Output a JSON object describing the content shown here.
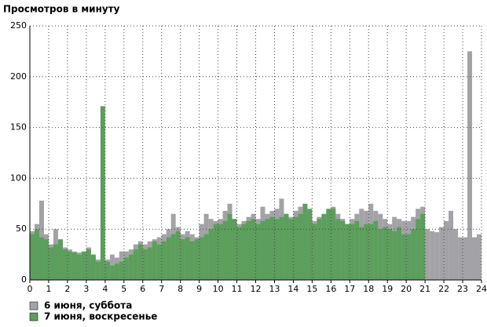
{
  "chart_data": {
    "type": "bar",
    "title": "Просмотров в минуту",
    "x": [
      0,
      0.25,
      0.5,
      0.75,
      1,
      1.25,
      1.5,
      1.75,
      2,
      2.25,
      2.5,
      2.75,
      3,
      3.25,
      3.5,
      3.75,
      4,
      4.25,
      4.5,
      4.75,
      5,
      5.25,
      5.5,
      5.75,
      6,
      6.25,
      6.5,
      6.75,
      7,
      7.25,
      7.5,
      7.75,
      8,
      8.25,
      8.5,
      8.75,
      9,
      9.25,
      9.5,
      9.75,
      10,
      10.25,
      10.5,
      10.75,
      11,
      11.25,
      11.5,
      11.75,
      12,
      12.25,
      12.5,
      12.75,
      13,
      13.25,
      13.5,
      13.75,
      14,
      14.25,
      14.5,
      14.75,
      15,
      15.25,
      15.5,
      15.75,
      16,
      16.25,
      16.5,
      16.75,
      17,
      17.25,
      17.5,
      17.75,
      18,
      18.25,
      18.5,
      18.75,
      19,
      19.25,
      19.5,
      19.75,
      20,
      20.25,
      20.5,
      20.75,
      21,
      21.25,
      21.5,
      21.75,
      22,
      22.25,
      22.5,
      22.75,
      23,
      23.25,
      23.5,
      23.75
    ],
    "series": [
      {
        "name": "6 июня, суббота",
        "color": "#a3a2a6",
        "values": [
          48,
          55,
          78,
          45,
          35,
          50,
          38,
          32,
          30,
          28,
          27,
          25,
          32,
          24,
          20,
          18,
          20,
          25,
          22,
          28,
          28,
          30,
          35,
          38,
          35,
          38,
          40,
          42,
          45,
          50,
          65,
          52,
          45,
          48,
          45,
          42,
          55,
          65,
          60,
          58,
          60,
          68,
          75,
          60,
          55,
          58,
          62,
          65,
          60,
          72,
          65,
          68,
          70,
          80,
          65,
          62,
          68,
          72,
          65,
          60,
          58,
          62,
          60,
          64,
          72,
          65,
          60,
          55,
          60,
          65,
          70,
          68,
          75,
          68,
          65,
          60,
          55,
          62,
          60,
          58,
          58,
          62,
          70,
          72,
          50,
          48,
          47,
          52,
          58,
          68,
          50,
          42,
          42,
          225,
          42,
          45
        ]
      },
      {
        "name": "7 июня, воскресенье",
        "color": "#5c9e5c",
        "values": [
          45,
          50,
          42,
          40,
          32,
          35,
          40,
          30,
          28,
          27,
          25,
          28,
          30,
          25,
          18,
          171,
          18,
          14,
          16,
          18,
          22,
          25,
          30,
          35,
          30,
          32,
          38,
          35,
          38,
          42,
          45,
          48,
          40,
          42,
          38,
          40,
          42,
          45,
          50,
          55,
          55,
          58,
          65,
          60,
          52,
          55,
          58,
          60,
          55,
          58,
          60,
          62,
          60,
          62,
          65,
          60,
          62,
          65,
          75,
          70,
          55,
          60,
          65,
          70,
          70,
          60,
          58,
          55,
          55,
          58,
          52,
          55,
          55,
          58,
          50,
          52,
          50,
          48,
          52,
          45,
          45,
          50,
          60,
          65,
          null,
          null,
          null,
          null,
          null,
          null,
          null,
          null,
          null,
          null,
          null,
          null
        ]
      }
    ],
    "xlim": [
      0,
      24
    ],
    "xticks": [
      0,
      1,
      2,
      3,
      4,
      5,
      6,
      7,
      8,
      9,
      10,
      11,
      12,
      13,
      14,
      15,
      16,
      17,
      18,
      19,
      20,
      21,
      22,
      23,
      24
    ],
    "ylim": [
      0,
      250
    ],
    "yticks": [
      0,
      50,
      100,
      150,
      200,
      250
    ],
    "grid": true
  }
}
